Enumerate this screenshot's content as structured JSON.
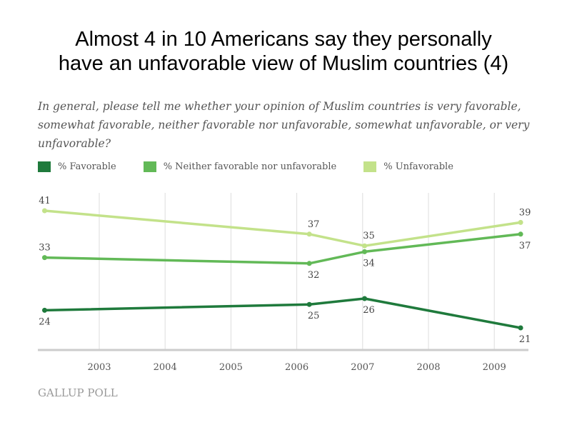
{
  "slide_title_line1": "Almost 4 in 10 Americans say they personally",
  "slide_title_line2": "have an unfavorable view of Muslim countries (4)",
  "question": "In general, please tell me whether your opinion of Muslim countries is very favorable, somewhat favorable, neither favorable nor unfavorable, somewhat unfavorable, or very unfavorable?",
  "logo": "GALLUP POLL",
  "chart_data": {
    "type": "line",
    "title": "",
    "xlabel": "",
    "ylabel": "",
    "x": [
      2002.17,
      2006.19,
      2007.03,
      2009.4
    ],
    "xticks": [
      "2003",
      "2004",
      "2005",
      "2006",
      "2007",
      "2008",
      "2009"
    ],
    "xlim": [
      2002.1,
      2009.5
    ],
    "ylim": [
      17.3,
      44
    ],
    "grid": "vertical",
    "legend_position": "top-left",
    "series": [
      {
        "name": "% Favorable",
        "color": "#1f7a3c",
        "values": [
          24,
          25,
          26,
          21
        ],
        "label_pos": [
          "below",
          "below",
          "below",
          "below"
        ]
      },
      {
        "name": "% Neither favorable nor unfavorable",
        "color": "#62b957",
        "values": [
          33,
          32,
          34,
          37
        ],
        "label_pos": [
          "above",
          "below",
          "below",
          "below"
        ]
      },
      {
        "name": "% Unfavorable",
        "color": "#c3e28a",
        "values": [
          41,
          37,
          35,
          39
        ],
        "label_pos": [
          "above",
          "above",
          "above",
          "above"
        ]
      }
    ]
  }
}
